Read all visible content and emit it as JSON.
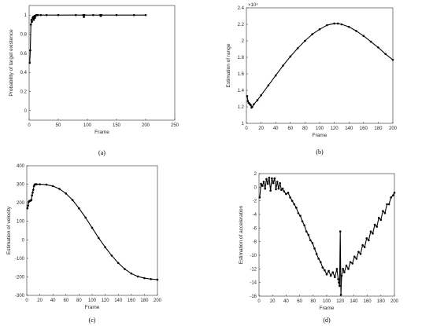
{
  "chart_data": [
    {
      "type": "line",
      "caption": "(a)",
      "xlabel": "Frame",
      "ylabel": "Probability of target existence",
      "xlim": [
        0,
        250
      ],
      "ylim": [
        -0.1,
        1.1
      ],
      "xticks": [
        0,
        50,
        100,
        150,
        200,
        250
      ],
      "yticks": [
        0,
        0.2,
        0.4,
        0.6,
        0.8,
        1
      ],
      "ytick_labels": [
        "0",
        "0.2",
        "0.4",
        "0.6",
        "0.8",
        "1"
      ],
      "series": [
        {
          "x": [
            1,
            2,
            3,
            4,
            5,
            6,
            7,
            8,
            9,
            10,
            11,
            12,
            13,
            15,
            20,
            30,
            50,
            80,
            93,
            94,
            95,
            110,
            122,
            123,
            124,
            150,
            180,
            200
          ],
          "y": [
            0.5,
            0.63,
            0.9,
            0.95,
            0.93,
            0.97,
            0.98,
            0.95,
            0.99,
            0.97,
            0.99,
            1.0,
            1.0,
            1.0,
            1.0,
            1.0,
            1.0,
            1.0,
            1.0,
            0.98,
            1.0,
            1.0,
            1.0,
            0.99,
            1.0,
            1.0,
            1.0,
            1.0
          ]
        }
      ]
    },
    {
      "type": "line",
      "caption": "(b)",
      "xlabel": "Frame",
      "ylabel": "Estimation of range",
      "exponent_label": "×10⁴",
      "xlim": [
        0,
        200
      ],
      "ylim": [
        1.0,
        2.4
      ],
      "xticks": [
        0,
        20,
        40,
        60,
        80,
        100,
        120,
        140,
        160,
        180,
        200
      ],
      "yticks": [
        1.0,
        1.2,
        1.4,
        1.6,
        1.8,
        2.0,
        2.2,
        2.4
      ],
      "ytick_labels": [
        "1",
        "1.2",
        "1.4",
        "1.6",
        "1.8",
        "2",
        "2.2",
        "2.4"
      ],
      "series": [
        {
          "x": [
            1,
            2,
            3,
            4,
            5,
            6,
            7,
            8,
            10,
            15,
            20,
            30,
            40,
            50,
            60,
            70,
            80,
            90,
            100,
            110,
            120,
            125,
            130,
            140,
            150,
            160,
            170,
            180,
            190,
            200
          ],
          "y": [
            1.33,
            1.27,
            1.25,
            1.24,
            1.23,
            1.22,
            1.19,
            1.2,
            1.23,
            1.28,
            1.34,
            1.46,
            1.58,
            1.7,
            1.81,
            1.91,
            2.0,
            2.08,
            2.14,
            2.19,
            2.21,
            2.21,
            2.2,
            2.17,
            2.12,
            2.06,
            1.99,
            1.92,
            1.84,
            1.77
          ]
        }
      ]
    },
    {
      "type": "line",
      "caption": "(c)",
      "xlabel": "Frame",
      "ylabel": "Estimation of velocity",
      "xlim": [
        0,
        200
      ],
      "ylim": [
        -300,
        400
      ],
      "xticks": [
        0,
        20,
        40,
        60,
        80,
        100,
        120,
        140,
        160,
        180,
        200
      ],
      "yticks": [
        -300,
        -200,
        -100,
        0,
        100,
        200,
        300,
        400
      ],
      "ytick_labels": [
        "-300",
        "-200",
        "-100",
        "0",
        "100",
        "200",
        "300",
        "400"
      ],
      "series": [
        {
          "x": [
            1,
            2,
            3,
            4,
            5,
            6,
            7,
            8,
            9,
            10,
            11,
            12,
            13,
            15,
            20,
            30,
            40,
            50,
            60,
            70,
            80,
            90,
            100,
            110,
            120,
            130,
            140,
            150,
            160,
            170,
            180,
            190,
            200
          ],
          "y": [
            170,
            185,
            205,
            210,
            210,
            212,
            215,
            240,
            255,
            270,
            290,
            298,
            300,
            300,
            300,
            298,
            290,
            275,
            250,
            215,
            170,
            120,
            65,
            10,
            -40,
            -85,
            -125,
            -158,
            -182,
            -198,
            -207,
            -212,
            -215
          ]
        }
      ]
    },
    {
      "type": "line",
      "caption": "(d)",
      "xlabel": "Frame",
      "ylabel": "Estimation of acceleration",
      "xlim": [
        0,
        200
      ],
      "ylim": [
        -16,
        2
      ],
      "xticks": [
        0,
        20,
        40,
        60,
        80,
        100,
        120,
        140,
        160,
        180,
        200
      ],
      "yticks": [
        -16,
        -14,
        -12,
        -10,
        -8,
        -6,
        -4,
        -2,
        0,
        2
      ],
      "ytick_labels": [
        "-16",
        "-14",
        "-12",
        "-10",
        "-8",
        "-6",
        "-4",
        "-2",
        "0",
        "2"
      ],
      "series": [
        {
          "x": [
            1,
            3,
            5,
            7,
            9,
            11,
            13,
            15,
            17,
            19,
            21,
            23,
            25,
            27,
            29,
            31,
            33,
            35,
            37,
            40,
            43,
            46,
            49,
            52,
            55,
            58,
            61,
            64,
            67,
            70,
            73,
            76,
            79,
            82,
            85,
            88,
            91,
            94,
            97,
            100,
            103,
            106,
            109,
            112,
            115,
            117,
            118,
            119,
            120,
            121,
            122,
            124,
            126,
            129,
            132,
            135,
            138,
            141,
            144,
            147,
            150,
            153,
            156,
            159,
            162,
            165,
            168,
            171,
            174,
            177,
            180,
            183,
            186,
            189,
            192,
            195,
            198,
            200
          ],
          "y": [
            -1.5,
            0.5,
            0.2,
            0.8,
            -0.2,
            1.2,
            0.5,
            1.4,
            -0.5,
            1.3,
            0.6,
            1.3,
            -0.3,
            0.8,
            -0.2,
            0.6,
            -0.4,
            -0.2,
            -0.6,
            -1.0,
            -0.8,
            -1.5,
            -2.0,
            -2.5,
            -3.0,
            -3.8,
            -4.2,
            -5.0,
            -5.6,
            -6.5,
            -7.0,
            -7.8,
            -8.2,
            -9.0,
            -9.8,
            -10.5,
            -11.0,
            -11.8,
            -12.2,
            -12.8,
            -12.3,
            -13.0,
            -12.5,
            -13.2,
            -12.0,
            -13.5,
            -14.0,
            -14.5,
            -6.5,
            -15.8,
            -13.0,
            -12.0,
            -12.5,
            -11.5,
            -12.0,
            -11.0,
            -11.2,
            -10.2,
            -10.5,
            -9.5,
            -9.8,
            -8.5,
            -8.8,
            -7.5,
            -7.8,
            -6.5,
            -6.8,
            -5.5,
            -5.8,
            -4.5,
            -4.8,
            -3.5,
            -3.8,
            -2.5,
            -2.5,
            -1.5,
            -1.2,
            -0.8
          ]
        }
      ]
    }
  ]
}
